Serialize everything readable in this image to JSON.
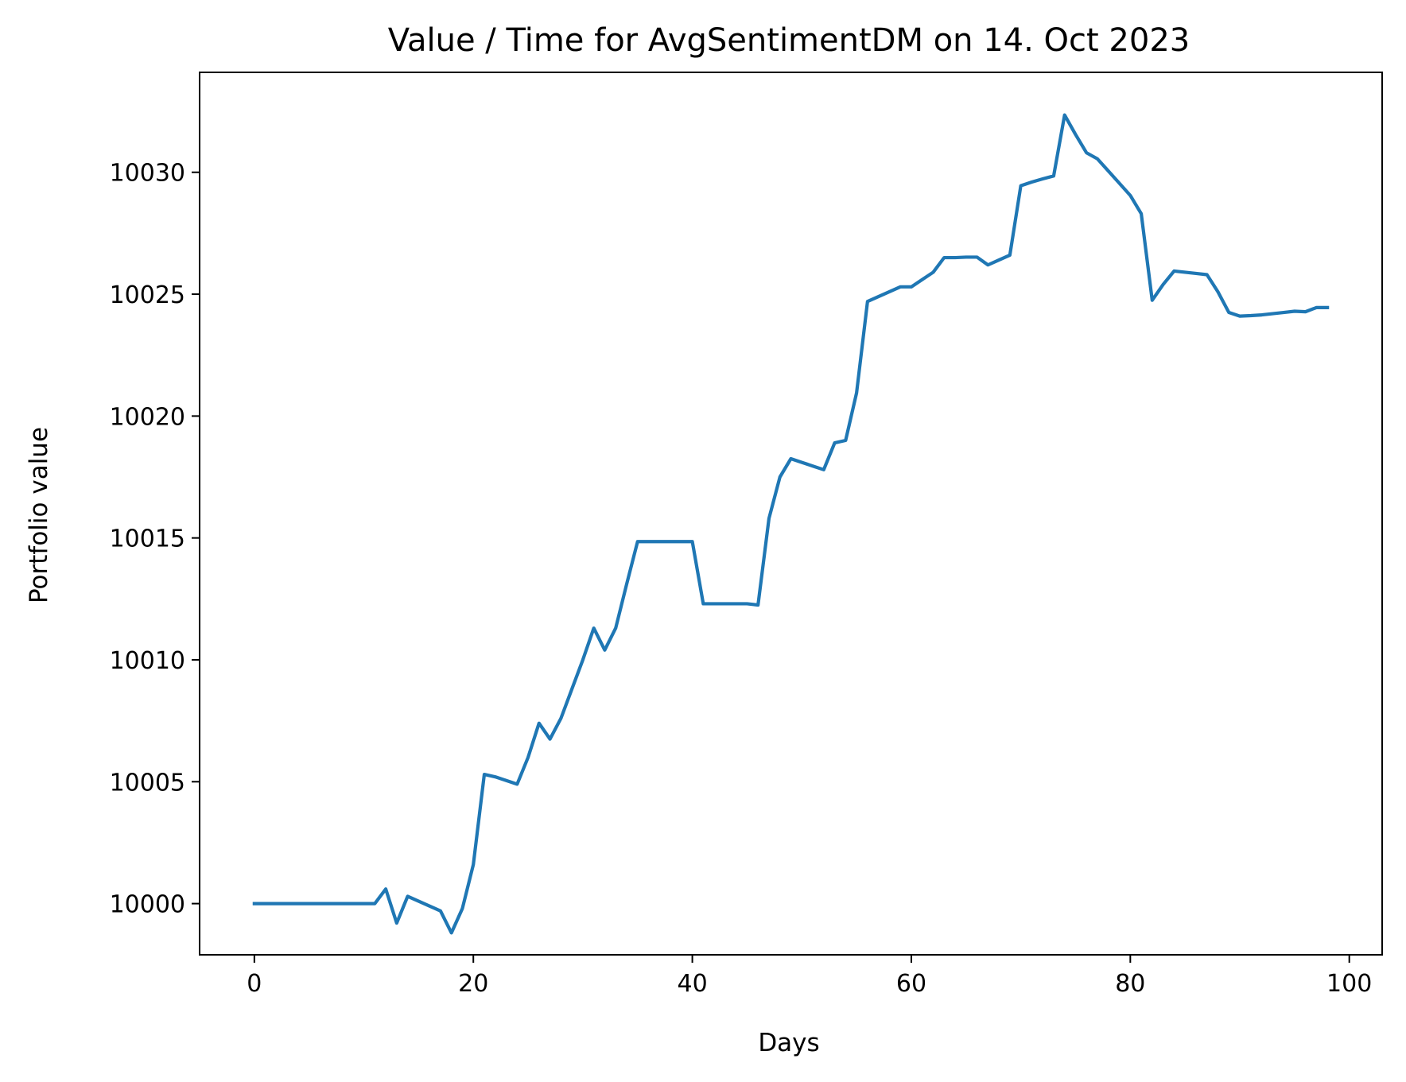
{
  "chart_data": {
    "type": "line",
    "title": "Value / Time for AvgSentimentDM on 14. Oct 2023",
    "xlabel": "Days",
    "ylabel": "Portfolio value",
    "xlim": [
      -5,
      103
    ],
    "ylim": [
      9997.9,
      10034.1
    ],
    "xticks": [
      0,
      20,
      40,
      60,
      80,
      100
    ],
    "yticks": [
      10000,
      10005,
      10010,
      10015,
      10020,
      10025,
      10030
    ],
    "grid": false,
    "legend": "none",
    "series": [
      {
        "color": "#1f77b4",
        "x": [
          0,
          1,
          2,
          3,
          4,
          5,
          6,
          7,
          8,
          9,
          10,
          11,
          12,
          13,
          14,
          15,
          16,
          17,
          18,
          19,
          20,
          21,
          22,
          23,
          24,
          25,
          26,
          27,
          28,
          29,
          30,
          31,
          32,
          33,
          34,
          35,
          36,
          37,
          38,
          39,
          40,
          41,
          42,
          43,
          44,
          45,
          46,
          47,
          48,
          49,
          50,
          51,
          52,
          53,
          54,
          55,
          56,
          57,
          58,
          59,
          60,
          61,
          62,
          63,
          64,
          65,
          66,
          67,
          68,
          69,
          70,
          71,
          72,
          73,
          74,
          75,
          76,
          77,
          78,
          79,
          80,
          81,
          82,
          83,
          84,
          85,
          86,
          87,
          88,
          89,
          90,
          91,
          92,
          93,
          94,
          95,
          96,
          97,
          98
        ],
        "y": [
          10000,
          10000,
          10000,
          10000,
          10000,
          10000,
          10000,
          10000,
          10000,
          10000,
          10000,
          10000,
          10000.6,
          9999.2,
          10000.3,
          10000.1,
          9999.9,
          9999.7,
          9998.8,
          9999.8,
          10001.6,
          10005.3,
          10005.2,
          10005.05,
          10004.9,
          10006,
          10007.4,
          10006.75,
          10007.6,
          10008.8,
          10010,
          10011.3,
          10010.4,
          10011.3,
          10013.1,
          10014.85,
          10014.85,
          10014.85,
          10014.85,
          10014.85,
          10014.85,
          10012.3,
          10012.3,
          10012.3,
          10012.3,
          10012.3,
          10012.25,
          10015.8,
          10017.5,
          10018.25,
          10018.1,
          10017.95,
          10017.8,
          10018.9,
          10019,
          10020.95,
          10024.7,
          10024.9,
          10025.1,
          10025.3,
          10025.3,
          10025.6,
          10025.9,
          10026.5,
          10026.5,
          10026.52,
          10026.52,
          10026.2,
          10026.4,
          10026.6,
          10029.45,
          10029.6,
          10029.73,
          10029.85,
          10032.35,
          10031.55,
          10030.8,
          10030.55,
          10030.05,
          10029.55,
          10029.05,
          10028.3,
          10024.75,
          10025.4,
          10025.95,
          10025.9,
          10025.85,
          10025.8,
          10025.1,
          10024.25,
          10024.1,
          10024.12,
          10024.15,
          10024.2,
          10024.25,
          10024.3,
          10024.28,
          10024.45,
          10024.45
        ]
      }
    ]
  }
}
